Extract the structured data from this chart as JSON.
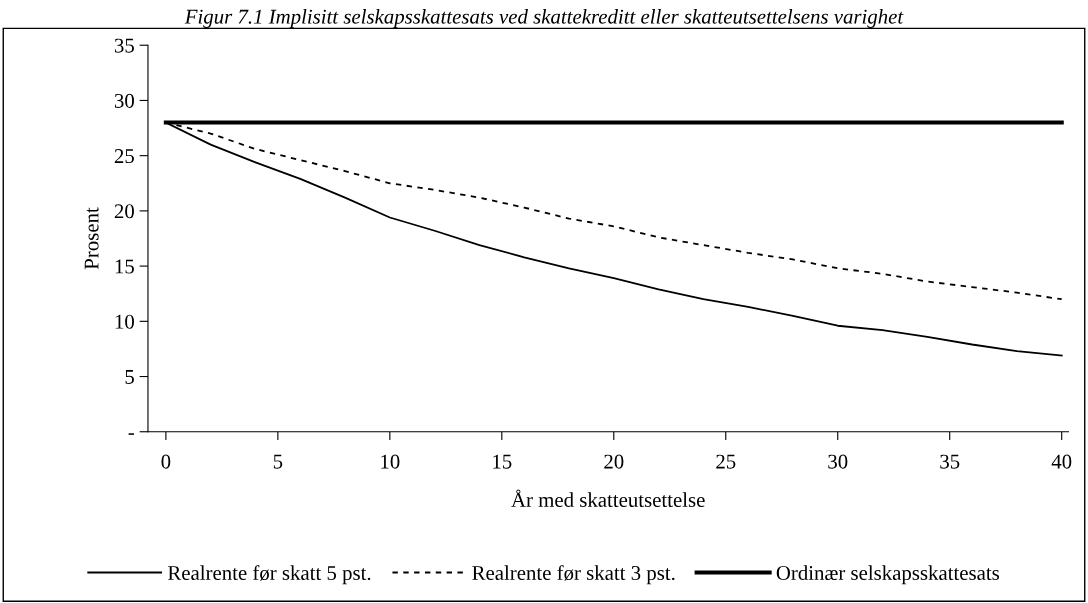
{
  "chart_data": {
    "type": "line",
    "title": "Figur 7.1 Implisitt selskapsskattesats ved skattekreditt eller skatteutsettelsens varighet",
    "xlabel": "År med skatteutsettelse",
    "ylabel": "Prosent",
    "x": [
      0,
      2,
      4,
      6,
      8,
      10,
      12,
      14,
      16,
      18,
      20,
      22,
      24,
      26,
      28,
      30,
      32,
      34,
      36,
      38,
      40
    ],
    "series": [
      {
        "name": "Realrente før skatt 5 pst.",
        "color": "#000000",
        "line_style": "solid",
        "values": [
          28,
          26.0,
          24.4,
          22.9,
          21.2,
          19.4,
          18.2,
          16.9,
          15.8,
          14.8,
          13.9,
          12.9,
          12.0,
          11.3,
          10.5,
          9.6,
          9.2,
          8.6,
          7.9,
          7.3,
          6.9
        ]
      },
      {
        "name": "Realrente før skatt 3 pst.",
        "color": "#000000",
        "line_style": "dashed",
        "values": [
          28,
          27.0,
          25.6,
          24.6,
          23.6,
          22.5,
          21.9,
          21.2,
          20.3,
          19.3,
          18.6,
          17.6,
          16.9,
          16.2,
          15.6,
          14.8,
          14.3,
          13.6,
          13.1,
          12.6,
          12.0
        ]
      },
      {
        "name": "Ordinær selskapsskattesats",
        "color": "#000000",
        "line_style": "solid",
        "values": [
          28,
          28,
          28,
          28,
          28,
          28,
          28,
          28,
          28,
          28,
          28,
          28,
          28,
          28,
          28,
          28,
          28,
          28,
          28,
          28,
          28
        ]
      }
    ],
    "xlim": [
      -0.8,
      40.3
    ],
    "xticks": [
      0,
      5,
      10,
      15,
      20,
      25,
      30,
      35,
      40
    ],
    "ylim": [
      0,
      35
    ],
    "yticks": [
      {
        "value": 0,
        "label": "-"
      },
      5,
      10,
      15,
      20,
      25,
      30,
      35
    ],
    "grid": false,
    "legend": "bottom",
    "marker": "none"
  }
}
